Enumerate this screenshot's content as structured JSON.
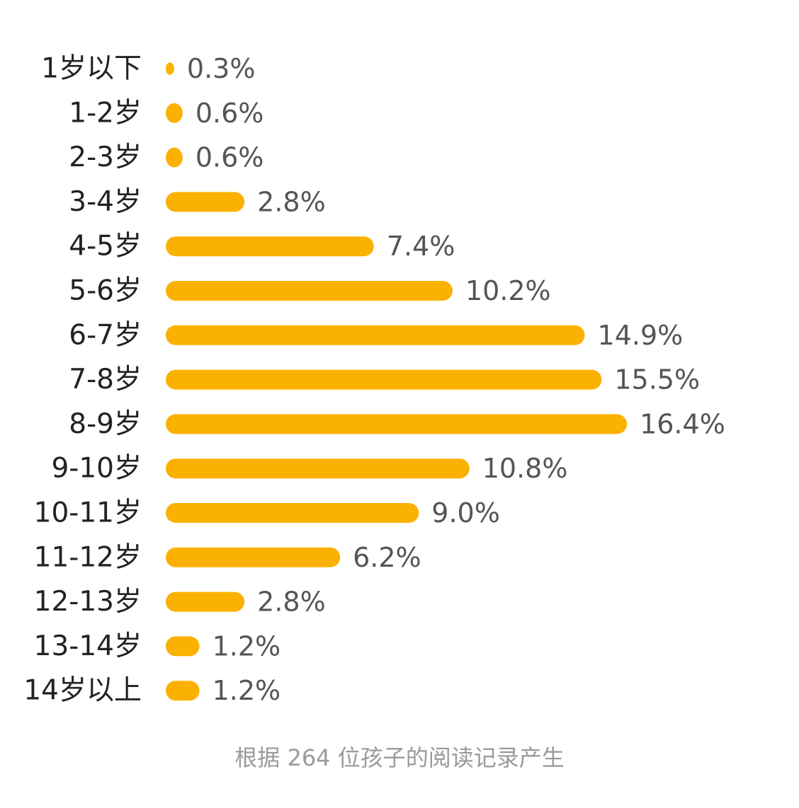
{
  "chart_data": {
    "type": "bar",
    "orientation": "horizontal",
    "categories": [
      "1岁以下",
      "1-2岁",
      "2-3岁",
      "3-4岁",
      "4-5岁",
      "5-6岁",
      "6-7岁",
      "7-8岁",
      "8-9岁",
      "9-10岁",
      "10-11岁",
      "11-12岁",
      "12-13岁",
      "13-14岁",
      "14岁以上"
    ],
    "values": [
      0.3,
      0.6,
      0.6,
      2.8,
      7.4,
      10.2,
      14.9,
      15.5,
      16.4,
      10.8,
      9.0,
      6.2,
      2.8,
      1.2,
      1.2
    ],
    "value_labels": [
      "0.3%",
      "0.6%",
      "0.6%",
      "2.8%",
      "7.4%",
      "10.2%",
      "14.9%",
      "15.5%",
      "16.4%",
      "10.8%",
      "9.0%",
      "6.2%",
      "2.8%",
      "1.2%",
      "1.2%"
    ],
    "unit": "%",
    "bar_color": "#fbb100",
    "title": "",
    "xlabel": "",
    "ylabel": "",
    "grid": false,
    "legend": "none"
  },
  "footnote": "根据 264 位孩子的阅读记录产生"
}
